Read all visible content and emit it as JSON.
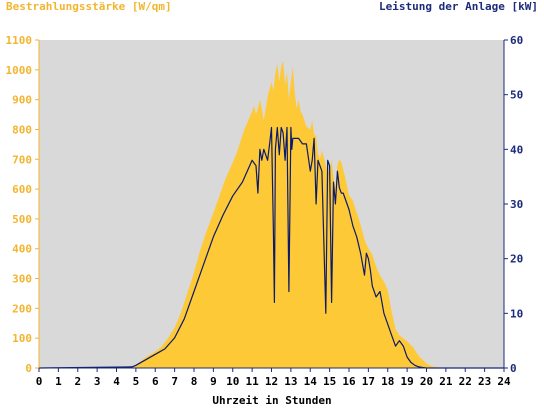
{
  "chart_data": {
    "type": "area",
    "ylabel_left": "Bestrahlungsstärke [W/qm]",
    "ylabel_right": "Leistung der Anlage [kW]",
    "xlabel": "Uhrzeit in Stunden",
    "x_ticks": [
      "0",
      "1",
      "2",
      "3",
      "4",
      "5",
      "6",
      "7",
      "8",
      "9",
      "10",
      "11",
      "12",
      "13",
      "14",
      "15",
      "16",
      "17",
      "18",
      "19",
      "20",
      "21",
      "22",
      "23",
      "24"
    ],
    "y_left_ticks": [
      "0",
      "100",
      "200",
      "300",
      "400",
      "500",
      "600",
      "700",
      "800",
      "900",
      "1000",
      "1100"
    ],
    "y_right_ticks": [
      "0",
      "10",
      "20",
      "30",
      "40",
      "50",
      "60"
    ],
    "xlim": [
      0,
      24
    ],
    "ylim_left": [
      0,
      1100
    ],
    "ylim_right": [
      0,
      60
    ],
    "grid": false,
    "series": [
      {
        "name": "Bestrahlungsstärke [W/qm]",
        "axis": "left",
        "kind": "area",
        "x": [
          0,
          4.5,
          4.8,
          5,
          5.3,
          5.6,
          6,
          6.3,
          6.6,
          7,
          7.3,
          7.6,
          8,
          8.3,
          8.6,
          9,
          9.3,
          9.6,
          10,
          10.2,
          10.4,
          10.6,
          10.8,
          11,
          11.1,
          11.2,
          11.3,
          11.4,
          11.5,
          11.6,
          11.8,
          12,
          12.1,
          12.2,
          12.3,
          12.4,
          12.5,
          12.6,
          12.7,
          12.8,
          12.9,
          13,
          13.1,
          13.2,
          13.3,
          13.4,
          13.5,
          13.6,
          13.8,
          14,
          14.1,
          14.2,
          14.3,
          14.4,
          14.5,
          14.6,
          14.8,
          15,
          15.1,
          15.2,
          15.3,
          15.4,
          15.5,
          15.6,
          15.8,
          16,
          16.2,
          16.4,
          16.6,
          16.8,
          17,
          17.2,
          17.4,
          17.6,
          17.8,
          18,
          18.2,
          18.4,
          18.6,
          18.8,
          19,
          19.3,
          19.6,
          20,
          20.3,
          20.6,
          21,
          24
        ],
        "y": [
          0,
          0,
          3,
          10,
          25,
          40,
          55,
          70,
          95,
          135,
          180,
          240,
          320,
          390,
          450,
          520,
          575,
          630,
          690,
          720,
          760,
          800,
          830,
          860,
          880,
          850,
          870,
          900,
          870,
          830,
          910,
          960,
          930,
          990,
          1020,
          960,
          1010,
          1030,
          950,
          990,
          900,
          960,
          1010,
          920,
          870,
          900,
          860,
          850,
          810,
          800,
          830,
          780,
          780,
          720,
          700,
          730,
          680,
          650,
          700,
          640,
          600,
          680,
          700,
          690,
          640,
          580,
          560,
          520,
          480,
          430,
          400,
          380,
          340,
          310,
          290,
          260,
          190,
          130,
          110,
          100,
          90,
          70,
          40,
          15,
          5,
          2,
          0,
          0
        ]
      },
      {
        "name": "Leistung der Anlage [kW]",
        "axis": "right",
        "kind": "line",
        "color": "#0b1a6b",
        "x": [
          0,
          4.8,
          5,
          5.5,
          6,
          6.5,
          7,
          7.5,
          8,
          8.5,
          9,
          9.5,
          10,
          10.5,
          11,
          11.2,
          11.3,
          11.4,
          11.5,
          11.6,
          11.7,
          11.8,
          11.9,
          12,
          12.1,
          12.15,
          12.2,
          12.3,
          12.4,
          12.5,
          12.6,
          12.7,
          12.8,
          12.9,
          13,
          13.05,
          13.1,
          13.2,
          13.4,
          13.6,
          13.8,
          14,
          14.1,
          14.2,
          14.3,
          14.4,
          14.6,
          14.8,
          14.9,
          15,
          15.1,
          15.2,
          15.3,
          15.4,
          15.5,
          15.6,
          15.7,
          15.8,
          16,
          16.2,
          16.4,
          16.6,
          16.8,
          16.9,
          17,
          17.1,
          17.2,
          17.4,
          17.6,
          17.8,
          18,
          18.2,
          18.4,
          18.6,
          18.8,
          19,
          19.2,
          19.4,
          19.6,
          19.8,
          20,
          20.2,
          24
        ],
        "y": [
          0,
          0.2,
          0.5,
          1.5,
          2.5,
          3.5,
          5.5,
          9,
          14,
          19,
          24,
          28,
          31.5,
          34,
          38,
          37,
          32,
          40,
          38,
          40,
          39,
          38,
          41,
          44,
          25,
          12,
          40,
          44,
          39,
          44,
          43,
          38,
          44,
          14,
          44,
          40,
          42,
          42,
          42,
          41,
          41,
          36,
          38,
          42,
          30,
          38,
          36,
          10,
          38,
          37,
          12,
          34,
          30,
          36,
          33,
          32,
          32,
          31,
          29,
          26,
          24,
          21,
          17,
          21,
          20,
          18,
          15,
          13,
          14,
          10,
          8,
          6,
          4,
          5,
          4,
          2,
          1,
          0.5,
          0.2,
          0.1,
          0,
          0,
          0
        ]
      }
    ],
    "colors": {
      "plot_bg": "#d9d9d9",
      "area": "#fdc936",
      "line": "#0b1a6b",
      "left_axis": "#f2b530",
      "right_axis": "#1c2b7a",
      "xlabel": "#000000"
    }
  }
}
